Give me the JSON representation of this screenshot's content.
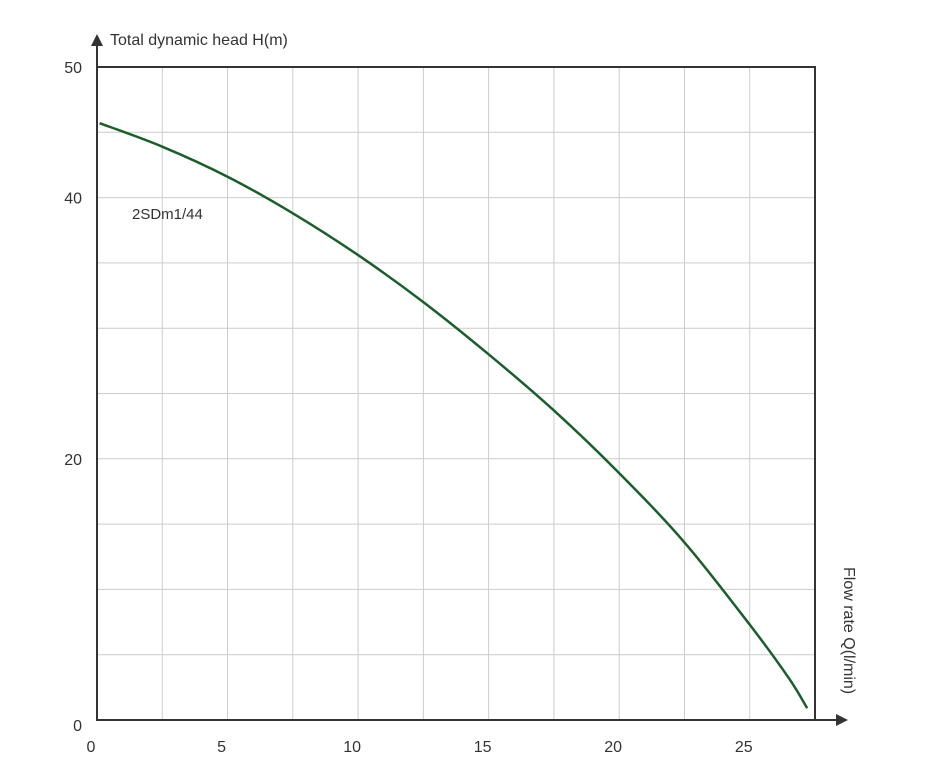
{
  "chart_data": {
    "type": "line",
    "title": "",
    "ylabel": "Total dynamic head H(m)",
    "xlabel": "Flow rate Q(l/min)",
    "xlim": [
      0,
      27.5
    ],
    "ylim": [
      0,
      50
    ],
    "x_ticks": [
      0,
      5,
      10,
      15,
      20,
      25
    ],
    "x_tick_labels": [
      "0",
      "5",
      "10",
      "15",
      "20",
      "25"
    ],
    "y_ticks": [
      0,
      20,
      40,
      50
    ],
    "y_tick_labels": [
      "0",
      "20",
      "40",
      "50"
    ],
    "x_grid_step": 2.5,
    "y_grid_step": 5,
    "grid": true,
    "legend": "none",
    "series": [
      {
        "name": "2SDm1/44",
        "color": "#1b5e2c",
        "x": [
          0.1,
          2.5,
          5,
          7.5,
          10,
          12.5,
          15,
          17.5,
          20,
          22.5,
          25,
          26.5,
          27.2
        ],
        "y": [
          45.7,
          43.9,
          41.6,
          38.8,
          35.6,
          32.0,
          28.0,
          23.7,
          18.9,
          13.6,
          7.3,
          3.2,
          0.9
        ]
      }
    ]
  }
}
